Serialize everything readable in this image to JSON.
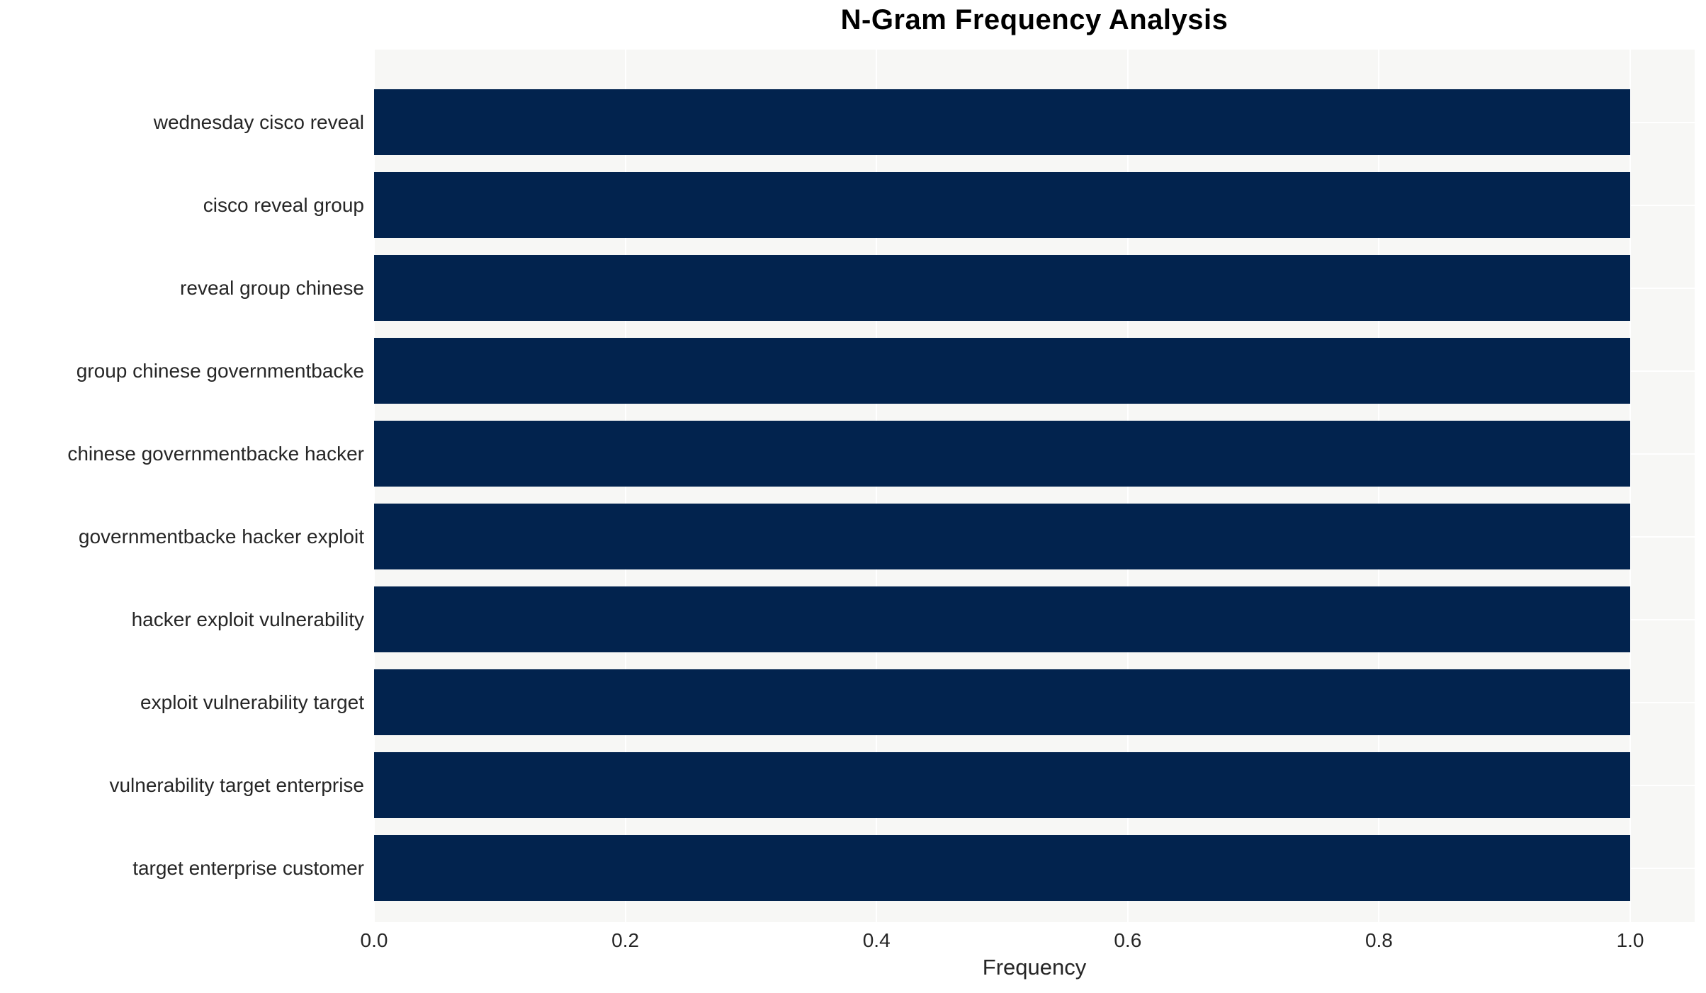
{
  "title": "N-Gram Frequency Analysis",
  "chart_data": {
    "type": "bar",
    "orientation": "horizontal",
    "title": "N-Gram Frequency Analysis",
    "xlabel": "Frequency",
    "ylabel": "",
    "categories": [
      "wednesday cisco reveal",
      "cisco reveal group",
      "reveal group chinese",
      "group chinese governmentbacke",
      "chinese governmentbacke hacker",
      "governmentbacke hacker exploit",
      "hacker exploit vulnerability",
      "exploit vulnerability target",
      "vulnerability target enterprise",
      "target enterprise customer"
    ],
    "values": [
      1.0,
      1.0,
      1.0,
      1.0,
      1.0,
      1.0,
      1.0,
      1.0,
      1.0,
      1.0
    ],
    "xticks": [
      0.0,
      0.2,
      0.4,
      0.6,
      0.8,
      1.0
    ],
    "xtick_labels": [
      "0.0",
      "0.2",
      "0.4",
      "0.6",
      "0.8",
      "1.0"
    ],
    "xlim": [
      0.0,
      1.0513
    ],
    "grid": true,
    "legend_position": "none",
    "bar_color": "#02234e",
    "plot_bg_color": "#f7f7f5",
    "grid_color": "#ffffff",
    "tick_text_color": "#262626",
    "title_color": "#000000"
  }
}
